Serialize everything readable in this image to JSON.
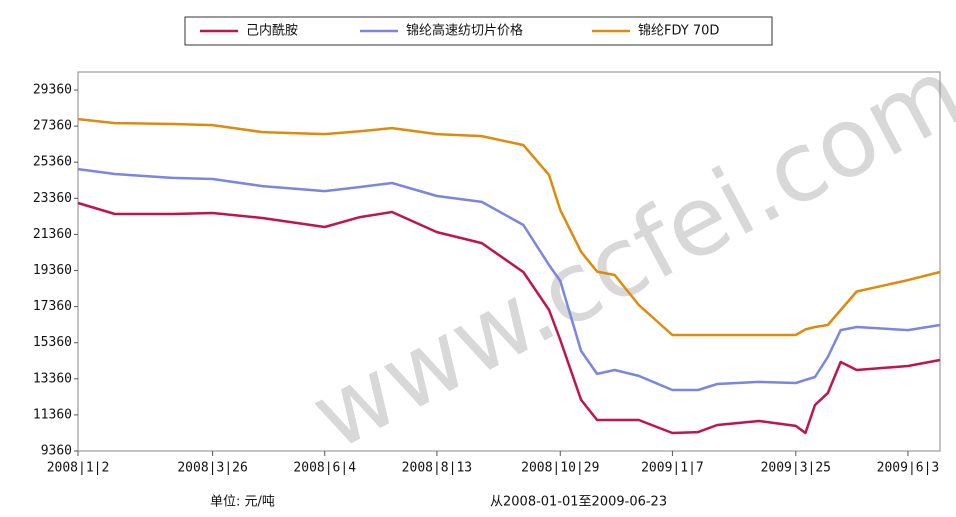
{
  "chart_data": {
    "type": "line",
    "watermark": "www.ccfei.com",
    "unit_note": "单位: 元/吨",
    "range_note": "从2008-01-01至2009-06-23",
    "x": [
      "2008-01-02",
      "2008-01-25",
      "2008-03-01",
      "2008-03-26",
      "2008-04-26",
      "2008-06-04",
      "2008-06-26",
      "2008-07-16",
      "2008-08-13",
      "2008-09-10",
      "2008-10-06",
      "2008-10-22",
      "2008-10-29",
      "2008-11-11",
      "2008-11-21",
      "2008-12-02",
      "2008-12-17",
      "2009-01-07",
      "2009-01-23",
      "2009-02-04",
      "2009-03-02",
      "2009-03-25",
      "2009-03-31",
      "2009-04-06",
      "2009-04-14",
      "2009-04-22",
      "2009-05-02",
      "2009-06-03",
      "2009-06-23"
    ],
    "series": [
      {
        "name": "己内酰胺",
        "color": "#c0144c",
        "values": [
          23100,
          22490,
          22490,
          22550,
          22270,
          21770,
          22320,
          22600,
          21490,
          20880,
          19270,
          17170,
          15510,
          12190,
          11080,
          11080,
          11080,
          10360,
          10410,
          10800,
          11020,
          10750,
          10360,
          11910,
          12570,
          14290,
          13850,
          14070,
          14400
        ]
      },
      {
        "name": "锦纶高速纺切片价格",
        "color": "#7a86e0",
        "values": [
          24980,
          24710,
          24490,
          24430,
          24040,
          23760,
          23990,
          24210,
          23490,
          23160,
          21880,
          19660,
          18780,
          14900,
          13630,
          13850,
          13520,
          12740,
          12740,
          13070,
          13190,
          13130,
          13300,
          13460,
          14570,
          16060,
          16230,
          16060,
          16340
        ]
      },
      {
        "name": "锦纶FDY 70D",
        "color": "#e08a0c",
        "values": [
          27750,
          27530,
          27480,
          27420,
          27030,
          26920,
          27080,
          27250,
          26920,
          26810,
          26310,
          24650,
          22710,
          20400,
          19300,
          19110,
          17450,
          15790,
          15790,
          15790,
          15790,
          15790,
          16100,
          16230,
          16340,
          17170,
          18200,
          18830,
          19280
        ]
      }
    ],
    "xlim": [
      "2008-01-02",
      "2009-06-23"
    ],
    "xticks": [
      {
        "value": "2008-01-02",
        "label": "2008|1|2"
      },
      {
        "value": "2008-03-26",
        "label": "2008|3|26"
      },
      {
        "value": "2008-06-04",
        "label": "2008|6|4"
      },
      {
        "value": "2008-08-13",
        "label": "2008|8|13"
      },
      {
        "value": "2008-10-29",
        "label": "2008|10|29"
      },
      {
        "value": "2009-01-07",
        "label": "2009|1|7"
      },
      {
        "value": "2009-03-25",
        "label": "2009|3|25"
      },
      {
        "value": "2009-06-03",
        "label": "2009|6|3"
      }
    ],
    "ylim": [
      9360,
      30360
    ],
    "yticks": [
      9360,
      11360,
      13360,
      15360,
      17360,
      19360,
      21360,
      23360,
      25360,
      27360,
      29360
    ],
    "grid": false,
    "legend": "top"
  }
}
